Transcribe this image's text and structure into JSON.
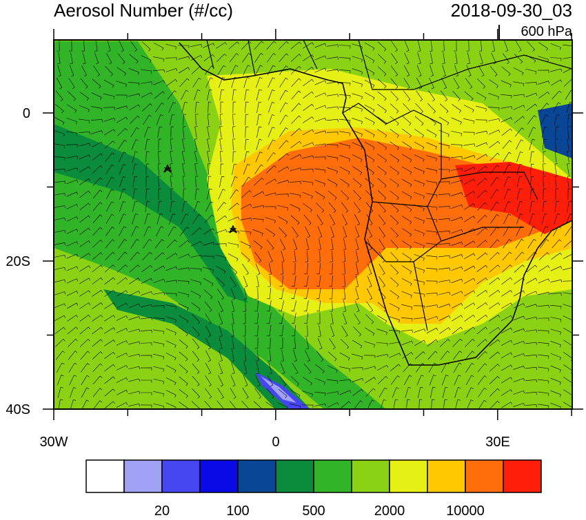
{
  "header": {
    "title": "Aerosol Number (#/cc)",
    "time": "2018-09-30_03",
    "level": "600 hPa"
  },
  "map": {
    "lat_labels": [
      "0",
      "20S",
      "40S"
    ],
    "lon_labels": [
      "30W",
      "0",
      "30E"
    ]
  },
  "colorbar": {
    "colors": [
      "#ffffff",
      "#a0a0f5",
      "#4646f0",
      "#0a0ae6",
      "#0a4696",
      "#0a8c3c",
      "#32b428",
      "#8cd214",
      "#e6f014",
      "#ffc800",
      "#ff6e0a",
      "#ff1e0a"
    ],
    "labels": [
      "20",
      "100",
      "500",
      "2000",
      "10000"
    ]
  }
}
